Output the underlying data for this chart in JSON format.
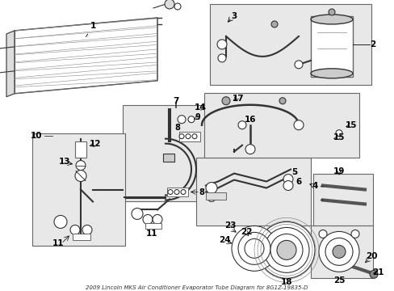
{
  "bg_color": "#ffffff",
  "fig_width": 4.89,
  "fig_height": 3.6,
  "dpi": 100,
  "box_color": "#e8e8e8",
  "line_color": "#333333",
  "label_fontsize": 7.5
}
